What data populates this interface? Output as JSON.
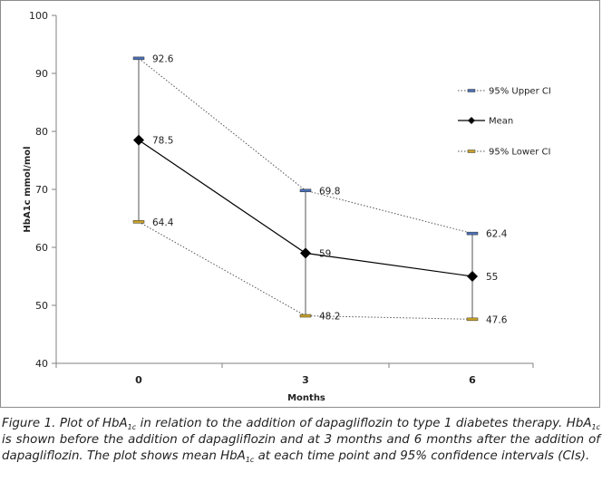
{
  "chart_data": {
    "type": "line",
    "x": [
      0,
      3,
      6
    ],
    "xlabel": "Months",
    "ylabel": "HbA1c mmol/mol",
    "ylim": [
      40,
      100
    ],
    "yticks": [
      40,
      50,
      60,
      70,
      80,
      90,
      100
    ],
    "grid": false,
    "legend_position": "right",
    "series": [
      {
        "name": "95% Upper CI",
        "values": [
          92.6,
          69.8,
          62.4
        ],
        "style": "dotted",
        "marker": "dash-blue"
      },
      {
        "name": "Mean",
        "values": [
          78.5,
          59,
          55
        ],
        "style": "solid",
        "marker": "diamond"
      },
      {
        "name": "95% Lower CI",
        "values": [
          64.4,
          48.2,
          47.6
        ],
        "style": "dotted",
        "marker": "dash-yellow"
      }
    ],
    "point_labels": {
      "upper": [
        "92.6",
        "69.8",
        "62.4"
      ],
      "mean": [
        "78.5",
        "59",
        "55"
      ],
      "lower": [
        "64.4",
        "48.2",
        "47.6"
      ]
    },
    "colors": {
      "upper": "#4a6fb5",
      "lower": "#c9a227",
      "mean": "#000000",
      "ci_line": "#555555"
    }
  },
  "caption": {
    "prefix": "Figure 1. Plot of HbA",
    "sub": "1c",
    "p1": " in relation to the addition of dapagliflozin to type 1 diabetes therapy. HbA",
    "p2": " is shown before the addition of dapagliflozin and at 3 months and 6 months after the addition of dapagliflozin. The plot shows mean HbA",
    "p3": " at each time point and 95% confidence intervals (CIs)."
  }
}
